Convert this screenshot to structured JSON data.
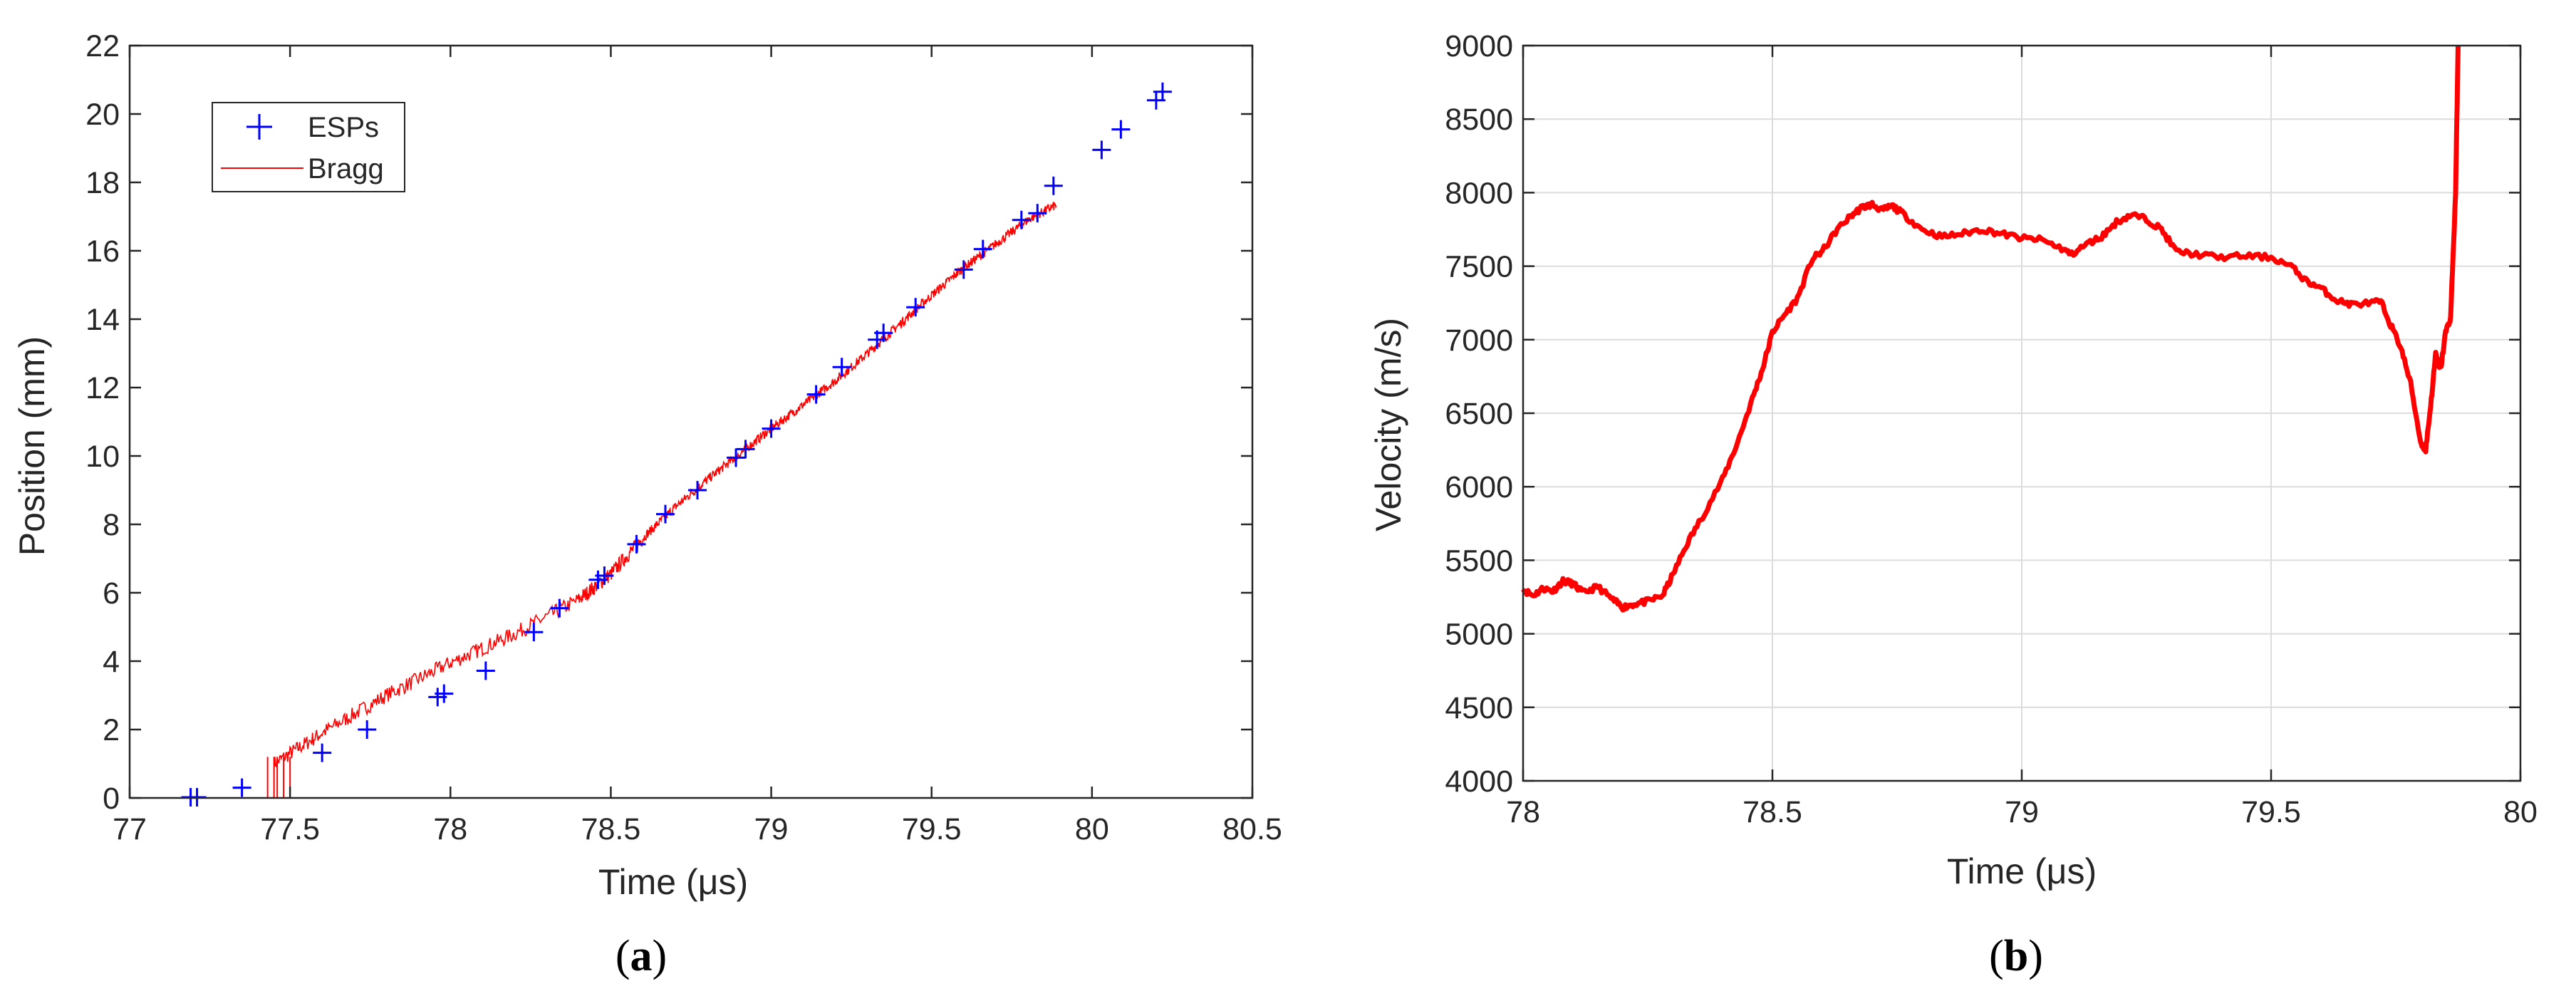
{
  "panels": [
    {
      "id": "a",
      "label_open": "(",
      "label_letter": "a",
      "label_close": ")"
    },
    {
      "id": "b",
      "label_open": "(",
      "label_letter": "b",
      "label_close": ")"
    }
  ],
  "colors": {
    "esp_marker": "#0000ff",
    "bragg_line": "#ff0000",
    "velocity_line": "#ff0000",
    "axis": "#262626",
    "grid": "#dcdcdc"
  },
  "chart_data": [
    {
      "type": "scatter",
      "title": "",
      "xlabel": "Time (μs)",
      "ylabel": "Position (mm)",
      "xlim": [
        77,
        80.5
      ],
      "ylim": [
        0,
        22
      ],
      "xticks": [
        77,
        77.5,
        78,
        78.5,
        79,
        79.5,
        80,
        80.5
      ],
      "xtick_labels": [
        "77",
        "77.5",
        "78",
        "78.5",
        "79",
        "79.5",
        "80",
        "80.5"
      ],
      "yticks": [
        0,
        2,
        4,
        6,
        8,
        10,
        12,
        14,
        16,
        18,
        20,
        22
      ],
      "ytick_labels": [
        "0",
        "2",
        "4",
        "6",
        "8",
        "10",
        "12",
        "14",
        "16",
        "18",
        "20",
        "22"
      ],
      "grid": false,
      "legend_position": "top-left",
      "series": [
        {
          "name": "ESPs",
          "kind": "marker-plus",
          "points": [
            [
              77.19,
              0.02
            ],
            [
              77.21,
              0.02
            ],
            [
              77.35,
              0.3
            ],
            [
              77.6,
              1.32
            ],
            [
              77.74,
              2.0
            ],
            [
              77.96,
              2.95
            ],
            [
              77.98,
              3.05
            ],
            [
              78.11,
              3.72
            ],
            [
              78.26,
              4.85
            ],
            [
              78.34,
              5.55
            ],
            [
              78.46,
              6.38
            ],
            [
              78.48,
              6.5
            ],
            [
              78.58,
              7.42
            ],
            [
              78.67,
              8.3
            ],
            [
              78.77,
              9.0
            ],
            [
              78.89,
              9.95
            ],
            [
              78.92,
              10.2
            ],
            [
              79.0,
              10.8
            ],
            [
              79.14,
              11.8
            ],
            [
              79.22,
              12.6
            ],
            [
              79.33,
              13.4
            ],
            [
              79.35,
              13.6
            ],
            [
              79.45,
              14.35
            ],
            [
              79.6,
              15.45
            ],
            [
              79.66,
              16.05
            ],
            [
              79.78,
              16.9
            ],
            [
              79.83,
              17.1
            ],
            [
              79.88,
              17.9
            ],
            [
              80.03,
              18.95
            ],
            [
              80.09,
              19.55
            ],
            [
              80.2,
              20.4
            ],
            [
              80.22,
              20.65
            ]
          ]
        },
        {
          "name": "Bragg",
          "kind": "noisy-line",
          "points": [
            [
              77.45,
              1.0
            ],
            [
              77.6,
              1.9
            ],
            [
              77.8,
              3.0
            ],
            [
              78.0,
              3.95
            ],
            [
              78.2,
              4.8
            ],
            [
              78.4,
              5.8
            ],
            [
              78.5,
              6.55
            ],
            [
              78.6,
              7.6
            ],
            [
              78.7,
              8.5
            ],
            [
              78.8,
              9.3
            ],
            [
              78.9,
              10.05
            ],
            [
              79.0,
              10.8
            ],
            [
              79.1,
              11.5
            ],
            [
              79.2,
              12.2
            ],
            [
              79.3,
              13.0
            ],
            [
              79.4,
              13.85
            ],
            [
              79.5,
              14.7
            ],
            [
              79.6,
              15.5
            ],
            [
              79.7,
              16.2
            ],
            [
              79.8,
              16.9
            ],
            [
              79.89,
              17.35
            ]
          ]
        }
      ]
    },
    {
      "type": "line",
      "title": "",
      "xlabel": "Time (μs)",
      "ylabel": "Velocity (m/s)",
      "xlim": [
        78,
        80
      ],
      "ylim": [
        4000,
        9000
      ],
      "xticks": [
        78,
        78.5,
        79,
        79.5,
        80
      ],
      "xtick_labels": [
        "78",
        "78.5",
        "79",
        "79.5",
        "80"
      ],
      "yticks": [
        4000,
        4500,
        5000,
        5500,
        6000,
        6500,
        7000,
        7500,
        8000,
        8500,
        9000
      ],
      "ytick_labels": [
        "4000",
        "4500",
        "5000",
        "5500",
        "6000",
        "6500",
        "7000",
        "7500",
        "8000",
        "8500",
        "9000"
      ],
      "grid": true,
      "series": [
        {
          "kind": "line",
          "points": [
            [
              78.0,
              5300
            ],
            [
              78.02,
              5260
            ],
            [
              78.04,
              5310
            ],
            [
              78.06,
              5290
            ],
            [
              78.08,
              5360
            ],
            [
              78.1,
              5340
            ],
            [
              78.12,
              5280
            ],
            [
              78.15,
              5320
            ],
            [
              78.18,
              5230
            ],
            [
              78.2,
              5180
            ],
            [
              78.22,
              5200
            ],
            [
              78.25,
              5220
            ],
            [
              78.28,
              5260
            ],
            [
              78.3,
              5400
            ],
            [
              78.33,
              5620
            ],
            [
              78.36,
              5800
            ],
            [
              78.4,
              6050
            ],
            [
              78.43,
              6300
            ],
            [
              78.46,
              6600
            ],
            [
              78.48,
              6800
            ],
            [
              78.5,
              7050
            ],
            [
              78.52,
              7150
            ],
            [
              78.55,
              7280
            ],
            [
              78.58,
              7550
            ],
            [
              78.6,
              7600
            ],
            [
              78.63,
              7750
            ],
            [
              78.66,
              7850
            ],
            [
              78.68,
              7900
            ],
            [
              78.7,
              7920
            ],
            [
              78.72,
              7880
            ],
            [
              78.74,
              7910
            ],
            [
              78.76,
              7860
            ],
            [
              78.8,
              7750
            ],
            [
              78.84,
              7700
            ],
            [
              78.88,
              7720
            ],
            [
              78.92,
              7750
            ],
            [
              78.96,
              7720
            ],
            [
              79.0,
              7690
            ],
            [
              79.04,
              7680
            ],
            [
              79.08,
              7620
            ],
            [
              79.1,
              7580
            ],
            [
              79.13,
              7650
            ],
            [
              79.16,
              7700
            ],
            [
              79.19,
              7800
            ],
            [
              79.22,
              7850
            ],
            [
              79.25,
              7820
            ],
            [
              79.28,
              7750
            ],
            [
              79.31,
              7600
            ],
            [
              79.35,
              7580
            ],
            [
              79.4,
              7560
            ],
            [
              79.45,
              7570
            ],
            [
              79.5,
              7560
            ],
            [
              79.54,
              7500
            ],
            [
              79.57,
              7400
            ],
            [
              79.6,
              7350
            ],
            [
              79.63,
              7270
            ],
            [
              79.66,
              7240
            ],
            [
              79.7,
              7250
            ],
            [
              79.72,
              7260
            ],
            [
              79.74,
              7100
            ],
            [
              79.76,
              6950
            ],
            [
              79.78,
              6700
            ],
            [
              79.8,
              6300
            ],
            [
              79.81,
              6250
            ],
            [
              79.82,
              6550
            ],
            [
              79.83,
              6900
            ],
            [
              79.84,
              6800
            ],
            [
              79.85,
              7050
            ],
            [
              79.86,
              7150
            ],
            [
              79.87,
              8000
            ],
            [
              79.875,
              9000
            ]
          ]
        }
      ]
    }
  ]
}
